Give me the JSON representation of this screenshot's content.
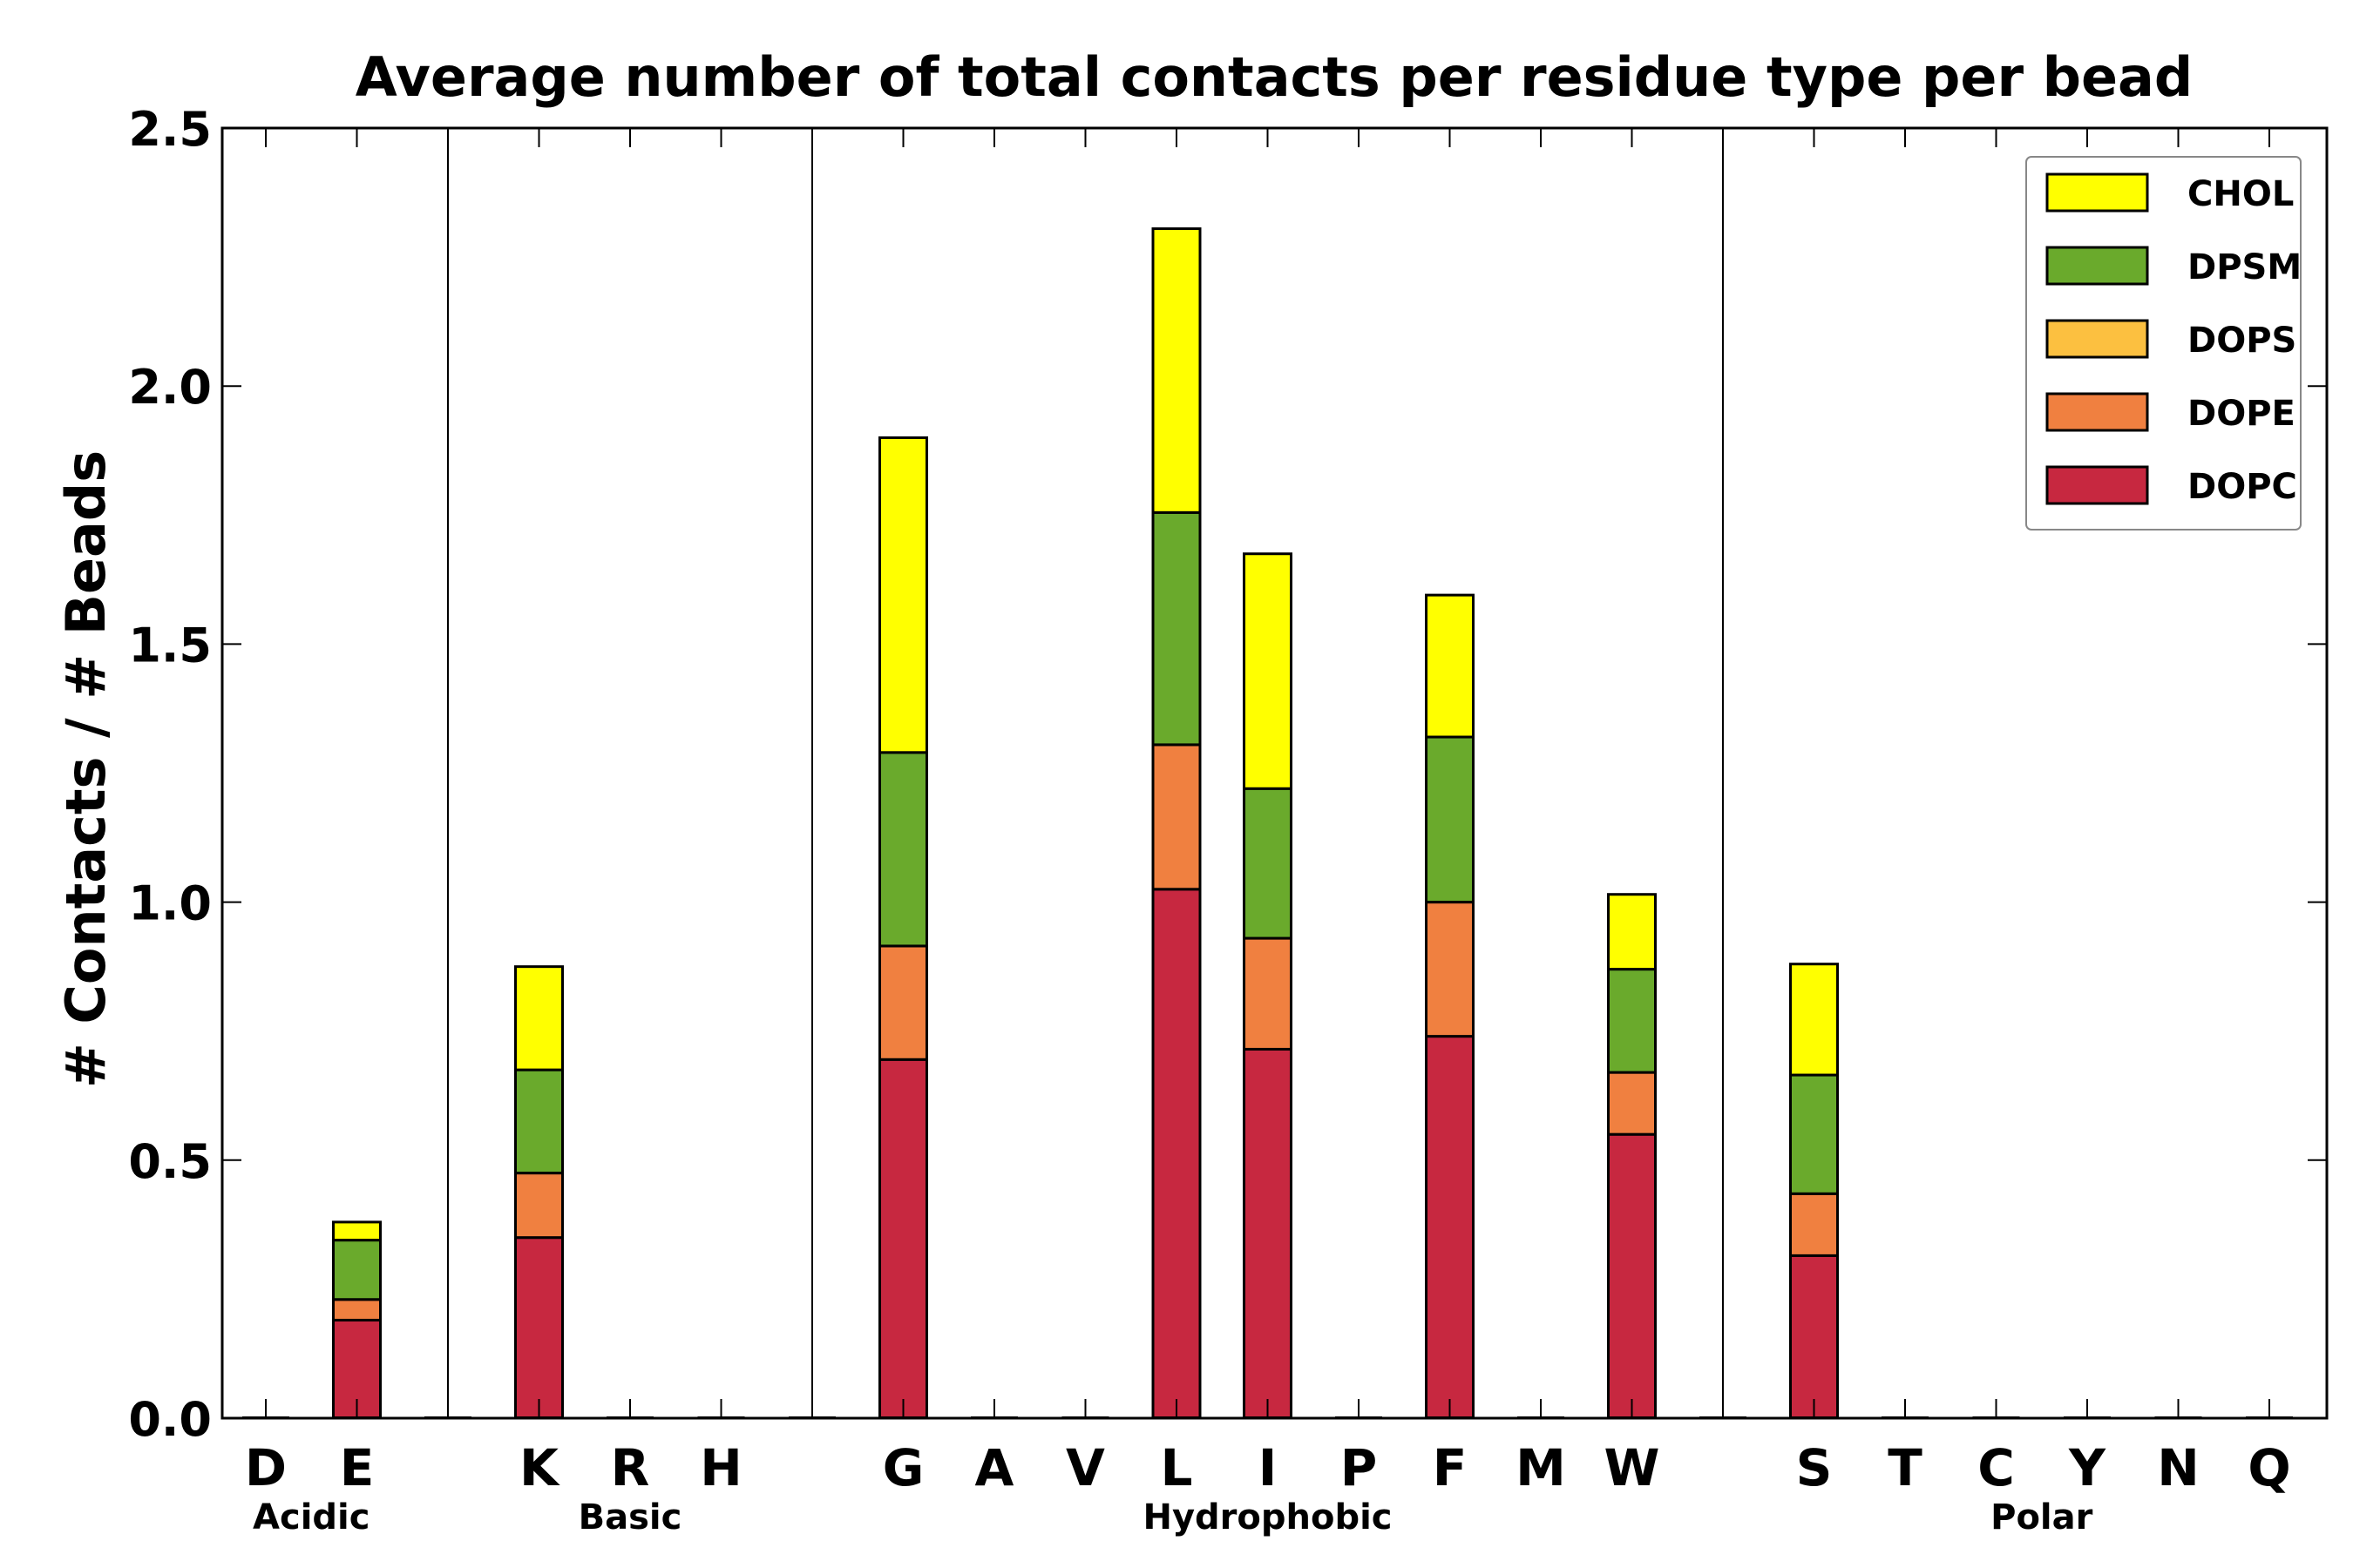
{
  "chart_data": {
    "type": "bar",
    "stacked": true,
    "title": "Average number of total contacts per residue type per bead",
    "xlabel": "",
    "ylabel": "# Contacts / # Beads",
    "ylim": [
      0,
      2.5
    ],
    "yticks": [
      "0.0",
      "0.5",
      "1.0",
      "1.5",
      "2.0",
      "2.5"
    ],
    "grid": false,
    "legend_position": "top-right",
    "categories": [
      "D",
      "E",
      "K",
      "R",
      "H",
      "G",
      "A",
      "V",
      "L",
      "I",
      "P",
      "F",
      "M",
      "W",
      "S",
      "T",
      "C",
      "Y",
      "N",
      "Q"
    ],
    "groups": [
      {
        "name": "Acidic",
        "members": [
          "D",
          "E"
        ]
      },
      {
        "name": "Basic",
        "members": [
          "K",
          "R",
          "H"
        ]
      },
      {
        "name": "Hydrophobic",
        "members": [
          "G",
          "A",
          "V",
          "L",
          "I",
          "P",
          "F",
          "M",
          "W"
        ]
      },
      {
        "name": "Polar",
        "members": [
          "S",
          "T",
          "C",
          "Y",
          "N",
          "Q"
        ]
      }
    ],
    "series": [
      {
        "name": "DOPC",
        "color": "#c72840",
        "values": [
          0,
          0.19,
          0.35,
          0,
          0,
          0.695,
          0,
          0,
          1.025,
          0.715,
          0,
          0.74,
          0,
          0.55,
          0.315,
          0,
          0,
          0,
          0,
          0
        ]
      },
      {
        "name": "DOPE",
        "color": "#f08040",
        "values": [
          0,
          0.04,
          0.125,
          0,
          0,
          0.22,
          0,
          0,
          0.28,
          0.215,
          0,
          0.26,
          0,
          0.12,
          0.12,
          0,
          0,
          0,
          0,
          0
        ]
      },
      {
        "name": "DOPS",
        "color": "#fcc040",
        "values": [
          0,
          0,
          0,
          0,
          0,
          0,
          0,
          0,
          0,
          0,
          0,
          0,
          0,
          0,
          0,
          0,
          0,
          0,
          0,
          0
        ]
      },
      {
        "name": "DPSM",
        "color": "#6aaa2c",
        "values": [
          0,
          0.115,
          0.2,
          0,
          0,
          0.375,
          0,
          0,
          0.45,
          0.29,
          0,
          0.32,
          0,
          0.2,
          0.23,
          0,
          0,
          0,
          0,
          0
        ]
      },
      {
        "name": "CHOL",
        "color": "#ffff00",
        "values": [
          0,
          0.035,
          0.2,
          0,
          0,
          0.61,
          0,
          0,
          0.55,
          0.455,
          0,
          0.275,
          0,
          0.145,
          0.215,
          0,
          0,
          0,
          0,
          0
        ]
      }
    ],
    "legend_order": [
      "CHOL",
      "DPSM",
      "DOPS",
      "DOPE",
      "DOPC"
    ]
  }
}
